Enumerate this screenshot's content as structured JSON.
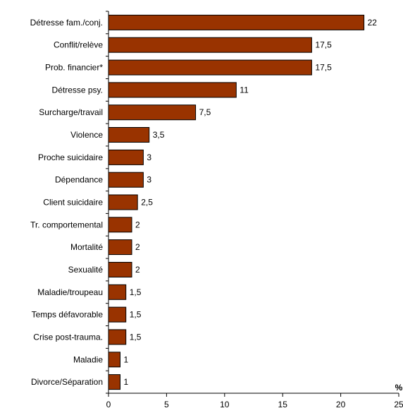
{
  "chart_data": {
    "type": "bar",
    "orientation": "horizontal",
    "title": "",
    "xlabel": "",
    "ylabel": "",
    "unit_label": "%",
    "categories": [
      "Détresse fam./conj.",
      "Conflit/relève",
      "Prob. financier*",
      "Détresse psy.",
      "Surcharge/travail",
      "Violence",
      "Proche suicidaire",
      "Dépendance",
      "Client suicidaire",
      "Tr. comportemental",
      "Mortalité",
      "Sexualité",
      "Maladie/troupeau",
      "Temps défavorable",
      "Crise post-trauma.",
      "Maladie",
      "Divorce/Séparation"
    ],
    "values": [
      22,
      17.5,
      17.5,
      11,
      7.5,
      3.5,
      3,
      3,
      2.5,
      2,
      2,
      2,
      1.5,
      1.5,
      1.5,
      1,
      1
    ],
    "value_labels": [
      "22",
      "17,5",
      "17,5",
      "11",
      "7,5",
      "3,5",
      "3",
      "3",
      "2,5",
      "2",
      "2",
      "2",
      "1,5",
      "1,5",
      "1,5",
      "1",
      "1"
    ],
    "xlim": [
      0,
      25
    ],
    "xticks": [
      0,
      5,
      10,
      15,
      20,
      25
    ],
    "grid": false,
    "bar_color": "#993300",
    "bar_edge_color": "#000000"
  }
}
